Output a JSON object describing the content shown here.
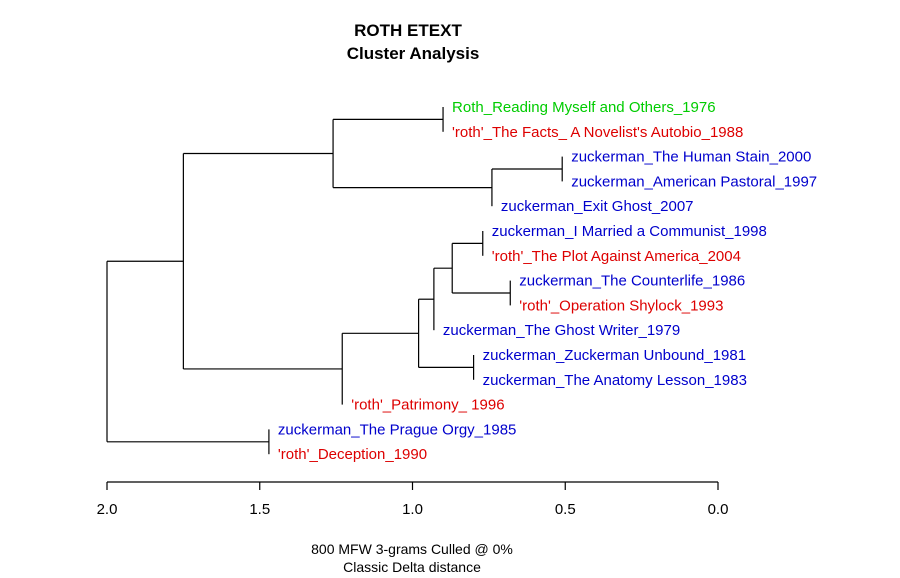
{
  "chart_data": {
    "type": "dendrogram",
    "title": [
      "ROTH ETEXT",
      "Cluster Analysis"
    ],
    "caption": [
      "800 MFW 3-grams Culled @ 0%",
      "Classic Delta distance"
    ],
    "axis": {
      "min": 0.0,
      "max": 2.0,
      "ticks": [
        "2.0",
        "1.5",
        "1.0",
        "0.5",
        "0.0"
      ],
      "tick_values": [
        2.0,
        1.5,
        1.0,
        0.5,
        0.0
      ],
      "direction": "reversed"
    },
    "colors": {
      "green": "#00cc00",
      "red": "#dd0000",
      "blue": "#0000cc"
    },
    "leaves": [
      {
        "label": "Roth_Reading Myself and Others_1976",
        "color": "green"
      },
      {
        "label": "'roth'_The Facts_ A Novelist's Autobio_1988",
        "color": "red"
      },
      {
        "label": "zuckerman_The Human Stain_2000",
        "color": "blue"
      },
      {
        "label": "zuckerman_American Pastoral_1997",
        "color": "blue"
      },
      {
        "label": "zuckerman_Exit Ghost_2007",
        "color": "blue"
      },
      {
        "label": "zuckerman_I Married a Communist_1998",
        "color": "blue"
      },
      {
        "label": "'roth'_The Plot Against America_2004",
        "color": "red"
      },
      {
        "label": "zuckerman_The Counterlife_1986",
        "color": "blue"
      },
      {
        "label": "'roth'_Operation Shylock_1993",
        "color": "red"
      },
      {
        "label": "zuckerman_The Ghost Writer_1979",
        "color": "blue"
      },
      {
        "label": "zuckerman_Zuckerman Unbound_1981",
        "color": "blue"
      },
      {
        "label": "zuckerman_The Anatomy Lesson_1983",
        "color": "blue"
      },
      {
        "label": "'roth'_Patrimony_ 1996",
        "color": "red"
      },
      {
        "label": "zuckerman_The Prague Orgy_1985",
        "color": "blue"
      },
      {
        "label": "'roth'_Deception_1990",
        "color": "red"
      }
    ],
    "merges": [
      {
        "id": "m1",
        "height": 0.9,
        "children": [
          "L0",
          "L1"
        ]
      },
      {
        "id": "m2",
        "height": 0.51,
        "children": [
          "L2",
          "L3"
        ]
      },
      {
        "id": "m3",
        "height": 0.74,
        "children": [
          "m2",
          "L4"
        ]
      },
      {
        "id": "m4",
        "height": 1.26,
        "children": [
          "m1",
          "m3"
        ]
      },
      {
        "id": "m5",
        "height": 0.77,
        "children": [
          "L5",
          "L6"
        ]
      },
      {
        "id": "m6",
        "height": 0.68,
        "children": [
          "L7",
          "L8"
        ]
      },
      {
        "id": "m7",
        "height": 0.87,
        "children": [
          "m5",
          "m6"
        ]
      },
      {
        "id": "m8",
        "height": 0.93,
        "children": [
          "m7",
          "L9"
        ]
      },
      {
        "id": "m9",
        "height": 0.8,
        "children": [
          "L10",
          "L11"
        ]
      },
      {
        "id": "m10",
        "height": 0.98,
        "children": [
          "m8",
          "m9"
        ]
      },
      {
        "id": "m11",
        "height": 1.23,
        "children": [
          "m10",
          "L12"
        ]
      },
      {
        "id": "m12",
        "height": 1.75,
        "children": [
          "m4",
          "m11"
        ]
      },
      {
        "id": "m13",
        "height": 1.47,
        "children": [
          "L13",
          "L14"
        ]
      },
      {
        "id": "m14",
        "height": 2.0,
        "children": [
          "m12",
          "m13"
        ]
      }
    ]
  }
}
